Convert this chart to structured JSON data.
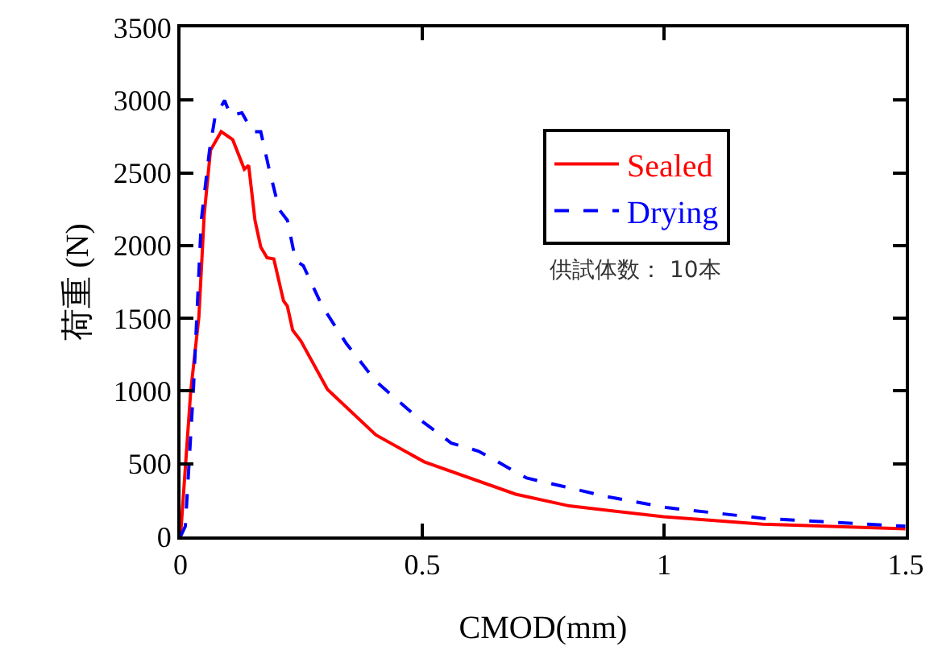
{
  "chart_data": {
    "type": "line",
    "xlabel": "CMOD(mm)",
    "ylabel": "荷重 (N)",
    "xlim": [
      0,
      1.5
    ],
    "xticks": [
      0,
      0.5,
      1,
      1.5
    ],
    "ylim": [
      0,
      3500
    ],
    "yticks": [
      0,
      500,
      1000,
      1500,
      2000,
      2500,
      3000,
      3500
    ],
    "grid": false,
    "legend": "right",
    "marker": "none",
    "annotations": [
      "供試体数： 10本"
    ],
    "series": [
      {
        "name": "Sealed",
        "color": "#ff0000",
        "line_style": "solid",
        "x": [
          0,
          0.021,
          0.038,
          0.049,
          0.062,
          0.084,
          0.108,
          0.132,
          0.141,
          0.154,
          0.166,
          0.179,
          0.193,
          0.213,
          0.221,
          0.232,
          0.249,
          0.304,
          0.404,
          0.504,
          0.693,
          0.804,
          0.999,
          1.204,
          1.499
        ],
        "values": [
          0,
          993,
          1510,
          2212,
          2655,
          2783,
          2728,
          2525,
          2551,
          2174,
          1990,
          1916,
          1908,
          1620,
          1584,
          1418,
          1344,
          1011,
          698,
          513,
          291,
          210,
          136,
          85,
          52
        ]
      },
      {
        "name": "Drying",
        "color": "#0000ff",
        "line_style": "dashed",
        "x": [
          0,
          0.01,
          0.027,
          0.043,
          0.06,
          0.071,
          0.091,
          0.104,
          0.127,
          0.149,
          0.166,
          0.182,
          0.204,
          0.221,
          0.238,
          0.254,
          0.293,
          0.343,
          0.404,
          0.493,
          0.56,
          0.616,
          0.716,
          0.882,
          1.004,
          1.204,
          1.499
        ],
        "values": [
          0,
          70,
          1030,
          2174,
          2655,
          2876,
          2998,
          2894,
          2913,
          2783,
          2783,
          2544,
          2248,
          2174,
          1897,
          1861,
          1584,
          1326,
          1067,
          809,
          642,
          587,
          402,
          274,
          199,
          125,
          70
        ]
      }
    ]
  }
}
